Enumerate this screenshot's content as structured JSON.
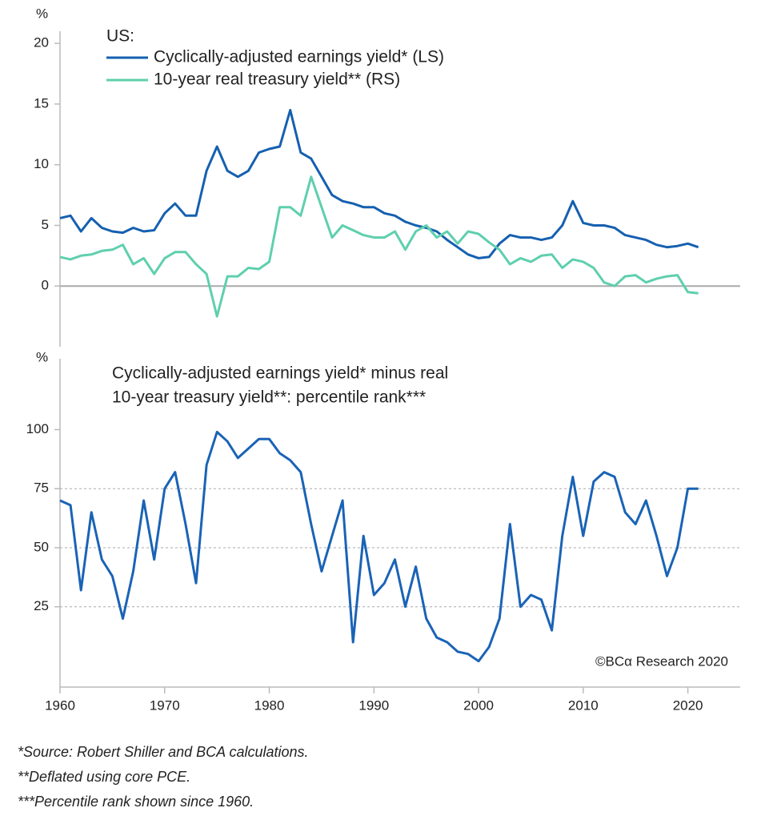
{
  "chart_data": [
    {
      "type": "line",
      "title": "US:",
      "ylabel": "%",
      "x": [
        1960,
        1961,
        1962,
        1963,
        1964,
        1965,
        1966,
        1967,
        1968,
        1969,
        1970,
        1971,
        1972,
        1973,
        1974,
        1975,
        1976,
        1977,
        1978,
        1979,
        1980,
        1981,
        1982,
        1983,
        1984,
        1985,
        1986,
        1987,
        1988,
        1989,
        1990,
        1991,
        1992,
        1993,
        1994,
        1995,
        1996,
        1997,
        1998,
        1999,
        2000,
        2001,
        2002,
        2003,
        2004,
        2005,
        2006,
        2007,
        2008,
        2009,
        2010,
        2011,
        2012,
        2013,
        2014,
        2015,
        2016,
        2017,
        2018,
        2019,
        2020,
        2021
      ],
      "series": [
        {
          "name": "Cyclically-adjusted earnings yield* (LS)",
          "color": "#1560b0",
          "values": [
            5.6,
            5.8,
            4.5,
            5.6,
            4.8,
            4.5,
            4.4,
            4.8,
            4.5,
            4.6,
            6.0,
            6.8,
            5.8,
            5.8,
            9.5,
            11.5,
            9.5,
            9.0,
            9.5,
            11.0,
            11.3,
            11.5,
            14.5,
            11.0,
            10.5,
            9.0,
            7.5,
            7.0,
            6.8,
            6.5,
            6.5,
            6.0,
            5.8,
            5.3,
            5.0,
            4.8,
            4.5,
            3.8,
            3.2,
            2.6,
            2.3,
            2.4,
            3.5,
            4.2,
            4.0,
            4.0,
            3.8,
            4.0,
            5.0,
            7.0,
            5.2,
            5.0,
            5.0,
            4.8,
            4.2,
            4.0,
            3.8,
            3.4,
            3.2,
            3.3,
            3.5,
            3.2
          ]
        },
        {
          "name": "10-year real treasury yield** (RS)",
          "color": "#5fcfae",
          "values": [
            2.4,
            2.2,
            2.5,
            2.6,
            2.9,
            3.0,
            3.4,
            1.8,
            2.3,
            1.0,
            2.3,
            2.8,
            2.8,
            1.8,
            1.0,
            -2.5,
            0.8,
            0.8,
            1.5,
            1.4,
            2.0,
            6.5,
            6.5,
            5.8,
            9.0,
            6.5,
            4.0,
            5.0,
            4.6,
            4.2,
            4.0,
            4.0,
            4.5,
            3.0,
            4.5,
            5.0,
            4.0,
            4.5,
            3.5,
            4.5,
            4.3,
            3.6,
            3.0,
            1.8,
            2.3,
            2.0,
            2.5,
            2.6,
            1.5,
            2.2,
            2.0,
            1.5,
            0.3,
            0.0,
            0.8,
            0.9,
            0.3,
            0.6,
            0.8,
            0.9,
            -0.5,
            -0.6
          ]
        }
      ],
      "xlim": [
        1960,
        2025
      ],
      "ylim": [
        -5,
        21
      ],
      "yticks": [
        0,
        5,
        10,
        15,
        20
      ],
      "gridlines": [
        0
      ],
      "legend": "upper left"
    },
    {
      "type": "line",
      "title": [
        "Cyclically-adjusted earnings yield* minus real",
        "10-year treasury yield**: percentile rank***"
      ],
      "ylabel": "%",
      "x": [
        1960,
        1961,
        1962,
        1963,
        1964,
        1965,
        1966,
        1967,
        1968,
        1969,
        1970,
        1971,
        1972,
        1973,
        1974,
        1975,
        1976,
        1977,
        1978,
        1979,
        1980,
        1981,
        1982,
        1983,
        1984,
        1985,
        1986,
        1987,
        1988,
        1989,
        1990,
        1991,
        1992,
        1993,
        1994,
        1995,
        1996,
        1997,
        1998,
        1999,
        2000,
        2001,
        2002,
        2003,
        2004,
        2005,
        2006,
        2007,
        2008,
        2009,
        2010,
        2011,
        2012,
        2013,
        2014,
        2015,
        2016,
        2017,
        2018,
        2019,
        2020,
        2021
      ],
      "series": [
        {
          "name": "Percentile rank",
          "color": "#1a63b6",
          "values": [
            70,
            68,
            32,
            65,
            45,
            38,
            20,
            40,
            70,
            45,
            75,
            82,
            60,
            35,
            85,
            99,
            95,
            88,
            92,
            96,
            96,
            90,
            87,
            82,
            60,
            40,
            55,
            70,
            10,
            55,
            30,
            35,
            45,
            25,
            42,
            20,
            12,
            10,
            6,
            5,
            2,
            8,
            20,
            60,
            25,
            30,
            28,
            15,
            55,
            80,
            55,
            78,
            82,
            80,
            65,
            60,
            70,
            55,
            38,
            50,
            75,
            75
          ]
        }
      ],
      "xlim": [
        1960,
        2025
      ],
      "ylim": [
        -9,
        130
      ],
      "yticks": [
        25,
        50,
        75,
        100
      ],
      "xticks": [
        1960,
        1970,
        1980,
        1990,
        2000,
        2010,
        2020
      ],
      "gridlines": [
        25,
        50,
        75
      ],
      "annotation": "©BCα Research 2020"
    }
  ],
  "footnotes": [
    "*Source: Robert Shiller and BCA calculations.",
    "**Deflated using core PCE.",
    "***Percentile rank shown since 1960."
  ]
}
